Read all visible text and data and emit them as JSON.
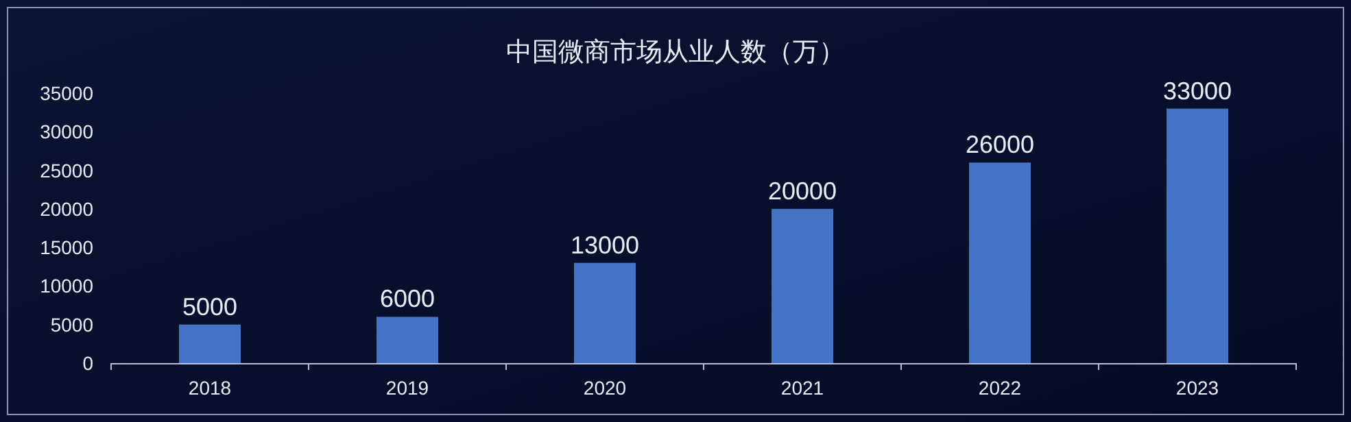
{
  "chart_data": {
    "type": "bar",
    "title": "中国微商市场从业人数（万）",
    "categories": [
      "2018",
      "2019",
      "2020",
      "2021",
      "2022",
      "2023"
    ],
    "values": [
      5000,
      6000,
      13000,
      20000,
      26000,
      33000
    ],
    "color": "#4472c4",
    "ylim": [
      0,
      35000
    ],
    "yticks": [
      0,
      5000,
      10000,
      15000,
      20000,
      25000,
      30000,
      35000
    ],
    "data_labels": true,
    "grid": false
  }
}
